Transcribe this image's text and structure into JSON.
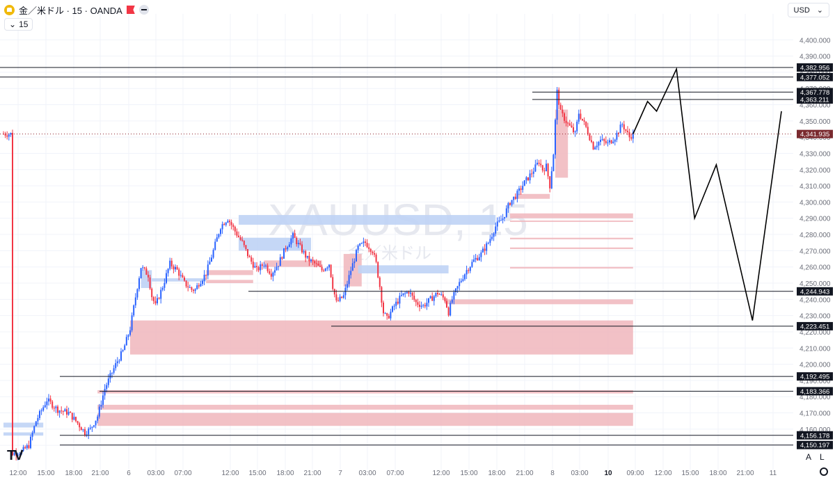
{
  "header": {
    "symbol": "金／米ドル · 15 · OANDA",
    "interval": "15",
    "currency": "USD",
    "watermark": "XAUUSD, 15",
    "watermark_sub": "金／米ドル",
    "scale_buttons": [
      "A",
      "L"
    ]
  },
  "colors": {
    "up": "#2962ff",
    "down": "#f23645",
    "red_zone": "#f0b6bc",
    "blue_zone": "#bfd3f5",
    "line": "#131722",
    "grid": "#f0f3fa"
  },
  "chart_data": {
    "type": "candlestick",
    "title": "",
    "ylim": [
      4140,
      4405
    ],
    "y_ticks": [
      4150,
      4160,
      4170,
      4180,
      4190,
      4200,
      4210,
      4220,
      4230,
      4240,
      4250,
      4260,
      4270,
      4280,
      4290,
      4300,
      4310,
      4320,
      4330,
      4340,
      4350,
      4360,
      4370,
      4380,
      4390,
      4400
    ],
    "x_tick_labels": [
      "12:00",
      "15:00",
      "18:00",
      "21:00",
      "6",
      "03:00",
      "07:00",
      "12:00",
      "15:00",
      "18:00",
      "21:00",
      "7",
      "03:00",
      "07:00",
      "12:00",
      "15:00",
      "18:00",
      "21:00",
      "8",
      "03:00",
      "10",
      "09:00",
      "12:00",
      "15:00",
      "18:00",
      "21:00",
      "11"
    ],
    "current_price": "4,341.935",
    "horizontal_levels": [
      {
        "price": 4382.956,
        "label": "4,382.956"
      },
      {
        "price": 4377.052,
        "label": "4,377.052"
      },
      {
        "price": 4367.778,
        "label": "4,367.778"
      },
      {
        "price": 4363.211,
        "label": "4,363.211"
      },
      {
        "price": 4244.943,
        "label": "4,244.943"
      },
      {
        "price": 4223.451,
        "label": "4,223.451"
      },
      {
        "price": 4192.495,
        "label": "4,192.495"
      },
      {
        "price": 4183.366,
        "label": "4,183.366"
      },
      {
        "price": 4156.178,
        "label": "4,156.178"
      },
      {
        "price": 4150.197,
        "label": "4,150.197"
      }
    ],
    "price_path": [
      [
        5,
        4145
      ],
      [
        10,
        4146
      ],
      [
        14,
        4150
      ],
      [
        18,
        4165
      ],
      [
        24,
        4178
      ],
      [
        30,
        4172
      ],
      [
        36,
        4170
      ],
      [
        40,
        4165
      ],
      [
        45,
        4158
      ],
      [
        48,
        4160
      ],
      [
        52,
        4168
      ],
      [
        56,
        4185
      ],
      [
        60,
        4195
      ],
      [
        63,
        4202
      ],
      [
        66,
        4208
      ],
      [
        70,
        4222
      ],
      [
        74,
        4248
      ],
      [
        76,
        4260
      ],
      [
        80,
        4255
      ],
      [
        82,
        4242
      ],
      [
        84,
        4236
      ],
      [
        88,
        4248
      ],
      [
        92,
        4262
      ],
      [
        96,
        4258
      ],
      [
        100,
        4250
      ],
      [
        104,
        4246
      ],
      [
        106,
        4246
      ],
      [
        108,
        4250
      ],
      [
        112,
        4256
      ],
      [
        116,
        4270
      ],
      [
        120,
        4285
      ],
      [
        124,
        4290
      ],
      [
        128,
        4282
      ],
      [
        132,
        4275
      ],
      [
        136,
        4265
      ],
      [
        140,
        4258
      ],
      [
        144,
        4262
      ],
      [
        148,
        4256
      ],
      [
        152,
        4262
      ],
      [
        156,
        4272
      ],
      [
        160,
        4279
      ],
      [
        164,
        4272
      ],
      [
        168,
        4265
      ],
      [
        172,
        4262
      ],
      [
        176,
        4258
      ],
      [
        180,
        4262
      ],
      [
        182,
        4248
      ],
      [
        184,
        4238
      ],
      [
        188,
        4242
      ],
      [
        192,
        4258
      ],
      [
        196,
        4272
      ],
      [
        200,
        4275
      ],
      [
        204,
        4270
      ],
      [
        206,
        4262
      ],
      [
        208,
        4248
      ],
      [
        210,
        4232
      ],
      [
        212,
        4228
      ],
      [
        216,
        4236
      ],
      [
        220,
        4242
      ],
      [
        224,
        4245
      ],
      [
        228,
        4238
      ],
      [
        232,
        4236
      ],
      [
        236,
        4240
      ],
      [
        240,
        4244
      ],
      [
        244,
        4240
      ],
      [
        246,
        4232
      ],
      [
        248,
        4240
      ],
      [
        252,
        4250
      ],
      [
        256,
        4258
      ],
      [
        260,
        4264
      ],
      [
        264,
        4268
      ],
      [
        268,
        4275
      ],
      [
        272,
        4285
      ],
      [
        276,
        4290
      ],
      [
        280,
        4300
      ],
      [
        284,
        4305
      ],
      [
        288,
        4312
      ],
      [
        292,
        4318
      ],
      [
        296,
        4325
      ],
      [
        298,
        4320
      ],
      [
        300,
        4322
      ],
      [
        302,
        4310
      ],
      [
        304,
        4330
      ],
      [
        305,
        4350
      ],
      [
        306,
        4368
      ],
      [
        308,
        4355
      ],
      [
        312,
        4348
      ],
      [
        316,
        4342
      ],
      [
        318,
        4355
      ],
      [
        322,
        4346
      ],
      [
        326,
        4334
      ],
      [
        330,
        4338
      ],
      [
        334,
        4336
      ],
      [
        338,
        4340
      ],
      [
        342,
        4348
      ],
      [
        346,
        4340
      ],
      [
        348,
        4342
      ]
    ],
    "projection": [
      [
        348,
        4342
      ],
      [
        356,
        4362
      ],
      [
        361,
        4356
      ],
      [
        372,
        4382
      ],
      [
        382,
        4290
      ],
      [
        394,
        4323
      ],
      [
        414,
        4227
      ],
      [
        430,
        4356
      ]
    ],
    "zones_red": [
      [
        70,
        348,
        4206,
        4227
      ],
      [
        52,
        348,
        4182,
        4184
      ],
      [
        52,
        348,
        4172,
        4175
      ],
      [
        52,
        348,
        4162,
        4170
      ],
      [
        280,
        348,
        4290,
        4293
      ],
      [
        280,
        348,
        4288,
        4288.6
      ],
      [
        280,
        348,
        4277,
        4278
      ],
      [
        280,
        348,
        4271,
        4272
      ],
      [
        280,
        348,
        4259,
        4260
      ],
      [
        244,
        348,
        4237,
        4240
      ],
      [
        305,
        312,
        4315,
        4357
      ],
      [
        284,
        302,
        4302,
        4305
      ],
      [
        112,
        138,
        4255,
        4258
      ],
      [
        112,
        138,
        4250,
        4252
      ],
      [
        188,
        198,
        4248,
        4268
      ],
      [
        144,
        176,
        4260,
        4264
      ]
    ],
    "zones_blue": [
      [
        130,
        272,
        4286,
        4292
      ],
      [
        130,
        170,
        4270,
        4278
      ],
      [
        196,
        246,
        4256,
        4261
      ],
      [
        76,
        82,
        4247,
        4258
      ],
      [
        82,
        112,
        4251,
        4253
      ],
      [
        0,
        22,
        4161,
        4164
      ],
      [
        0,
        22,
        4156,
        4158
      ]
    ]
  }
}
